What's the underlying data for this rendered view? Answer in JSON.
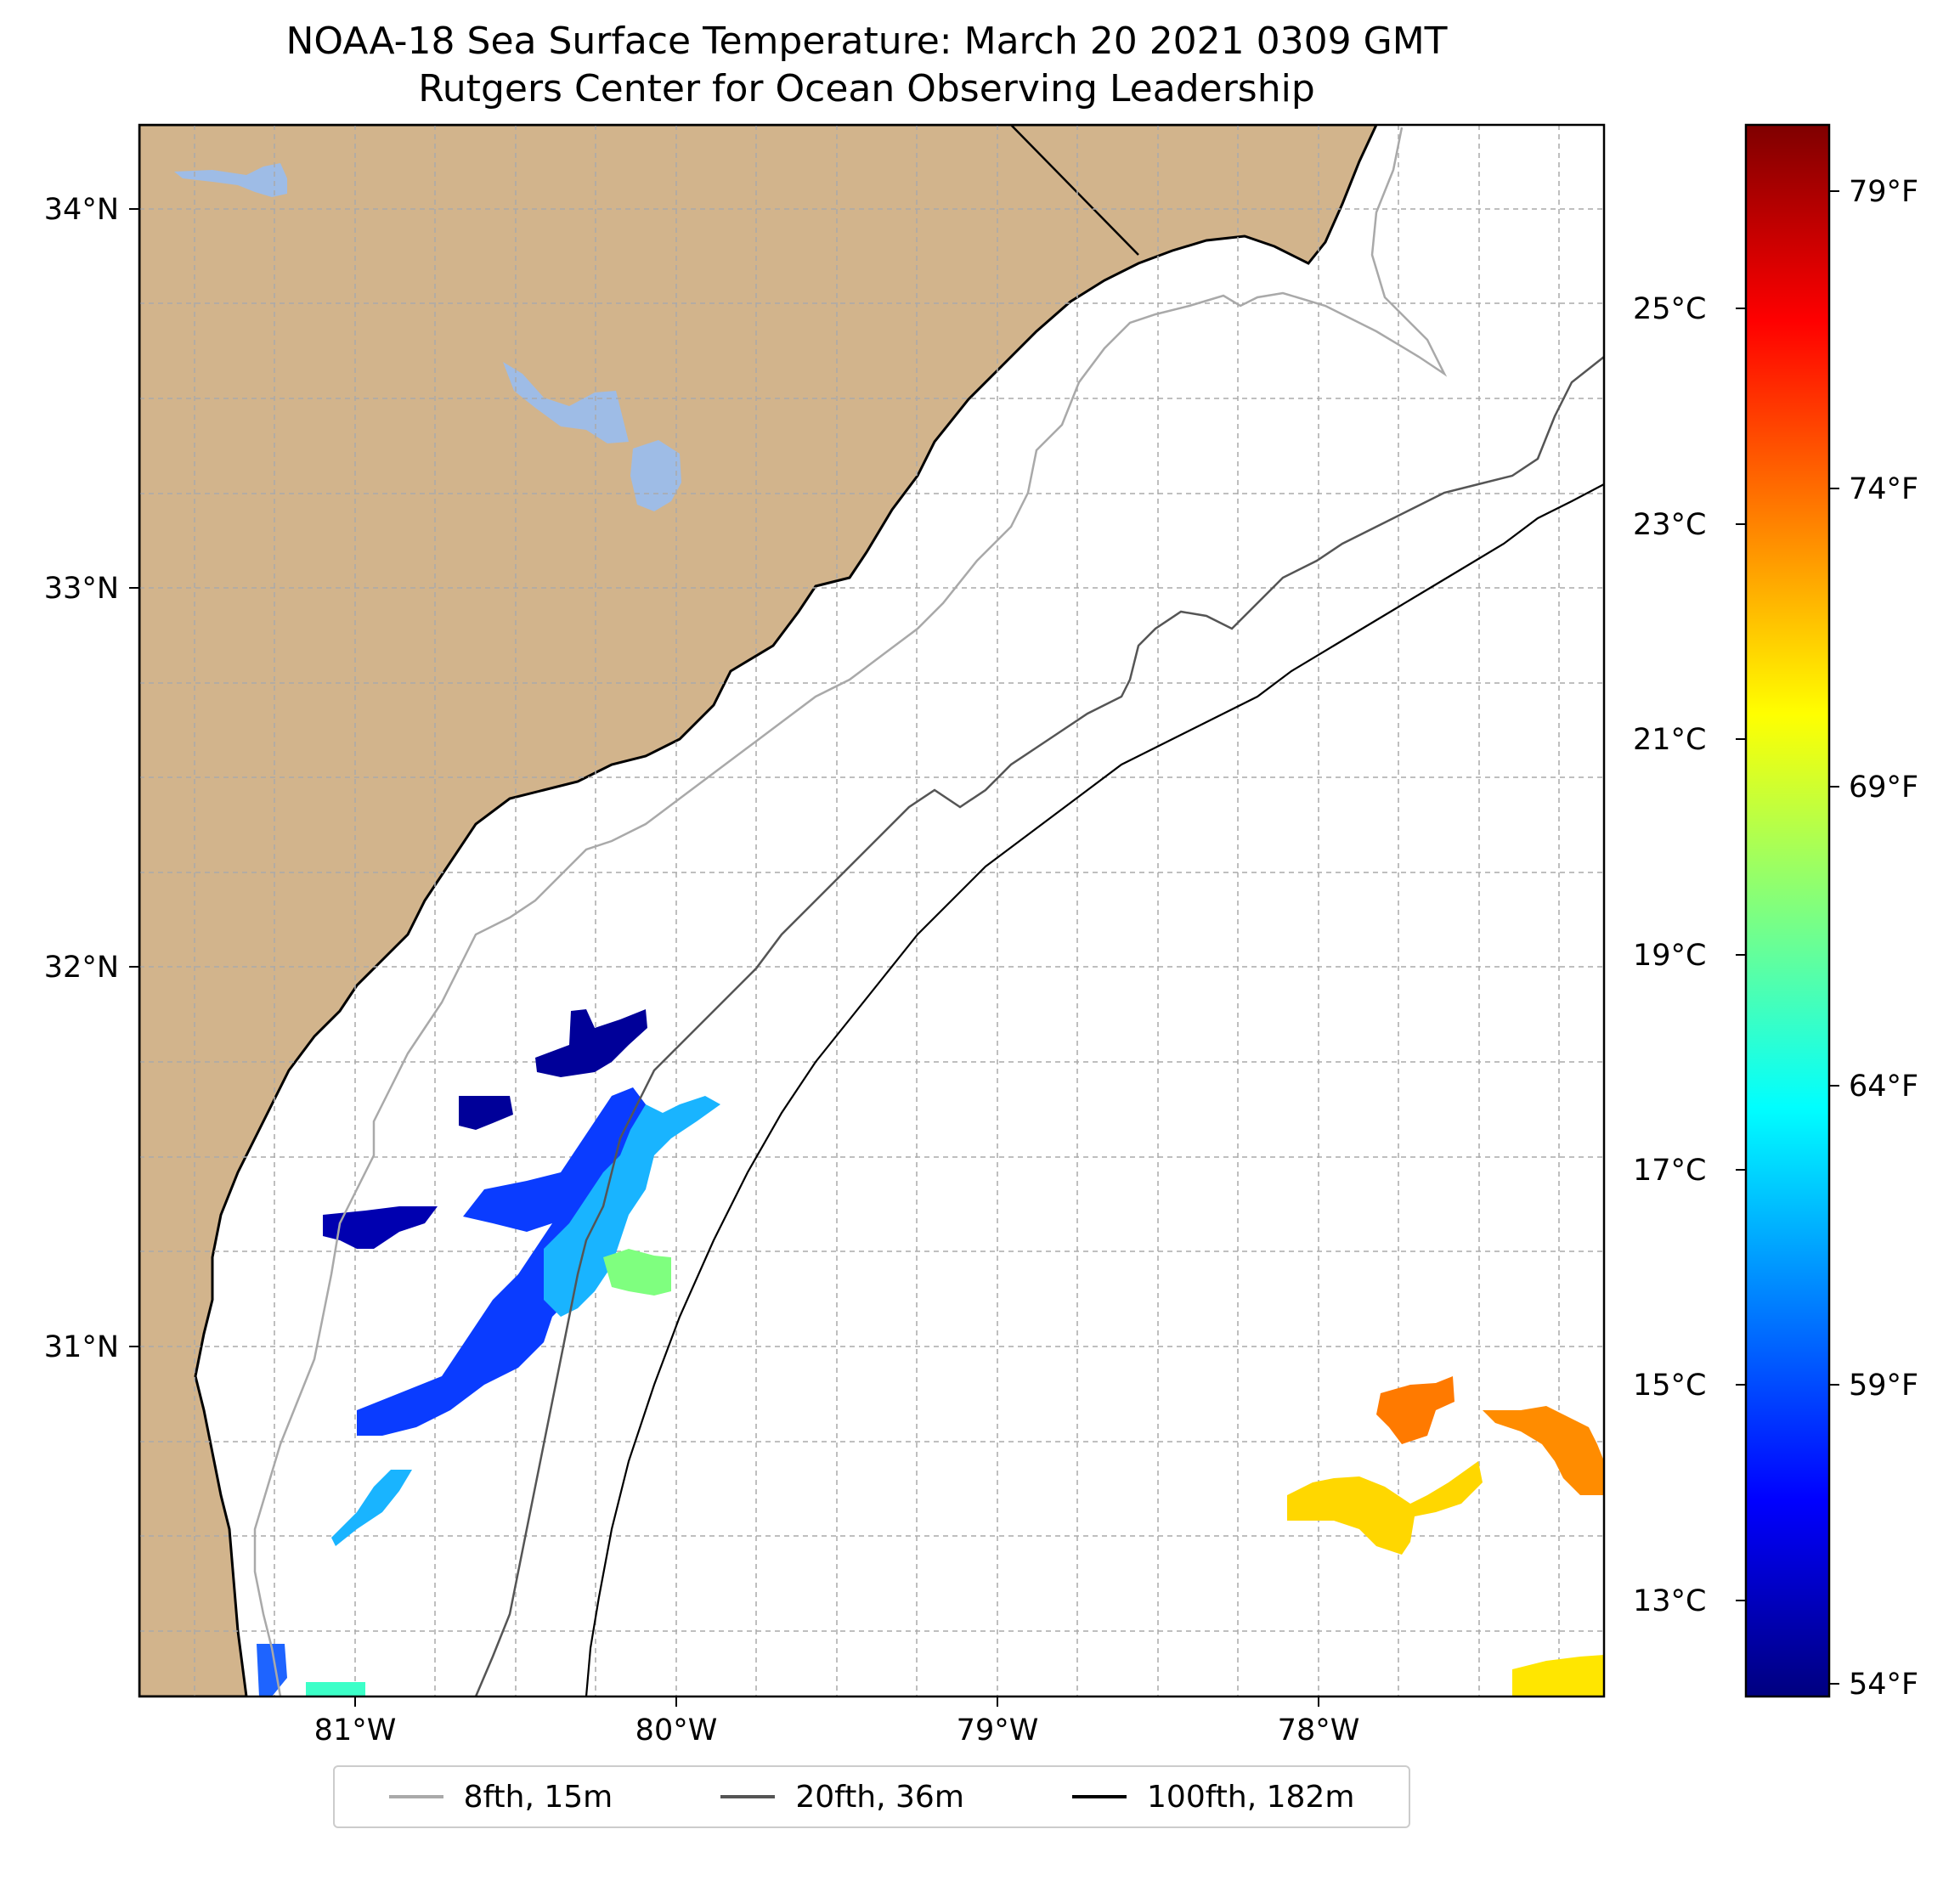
{
  "title": {
    "line1": "NOAA-18 Sea Surface Temperature: March 20 2021 0309 GMT",
    "line2": "Rutgers Center for Ocean Observing Leadership"
  },
  "axes": {
    "lat_labels": [
      "34°N",
      "33°N",
      "32°N",
      "31°N"
    ],
    "lon_labels": [
      "81°W",
      "80°W",
      "79°W",
      "78°W"
    ],
    "lon_range": [
      -81.67,
      -77.12
    ],
    "lat_range": [
      30.07,
      34.22
    ]
  },
  "colorbar": {
    "celsius_labels": [
      "25°C",
      "23°C",
      "21°C",
      "19°C",
      "17°C",
      "15°C",
      "13°C"
    ],
    "fahrenheit_labels": [
      "79°F",
      "74°F",
      "69°F",
      "64°F",
      "59°F",
      "54°F"
    ],
    "colormap": "jet",
    "stops": [
      "#00007f",
      "#0000ff",
      "#007fff",
      "#00ffff",
      "#7fff7f",
      "#ffff00",
      "#ff7f00",
      "#ff0000",
      "#7f0000"
    ]
  },
  "legend": {
    "items": [
      {
        "label": "8fth, 15m",
        "color": "#a9a9a9"
      },
      {
        "label": "20fth, 36m",
        "color": "#555555"
      },
      {
        "label": "100fth, 182m",
        "color": "#000000"
      }
    ]
  },
  "colors": {
    "land": "#d2b48c",
    "water_body": "#9ebce6",
    "ocean": "#ffffff"
  }
}
